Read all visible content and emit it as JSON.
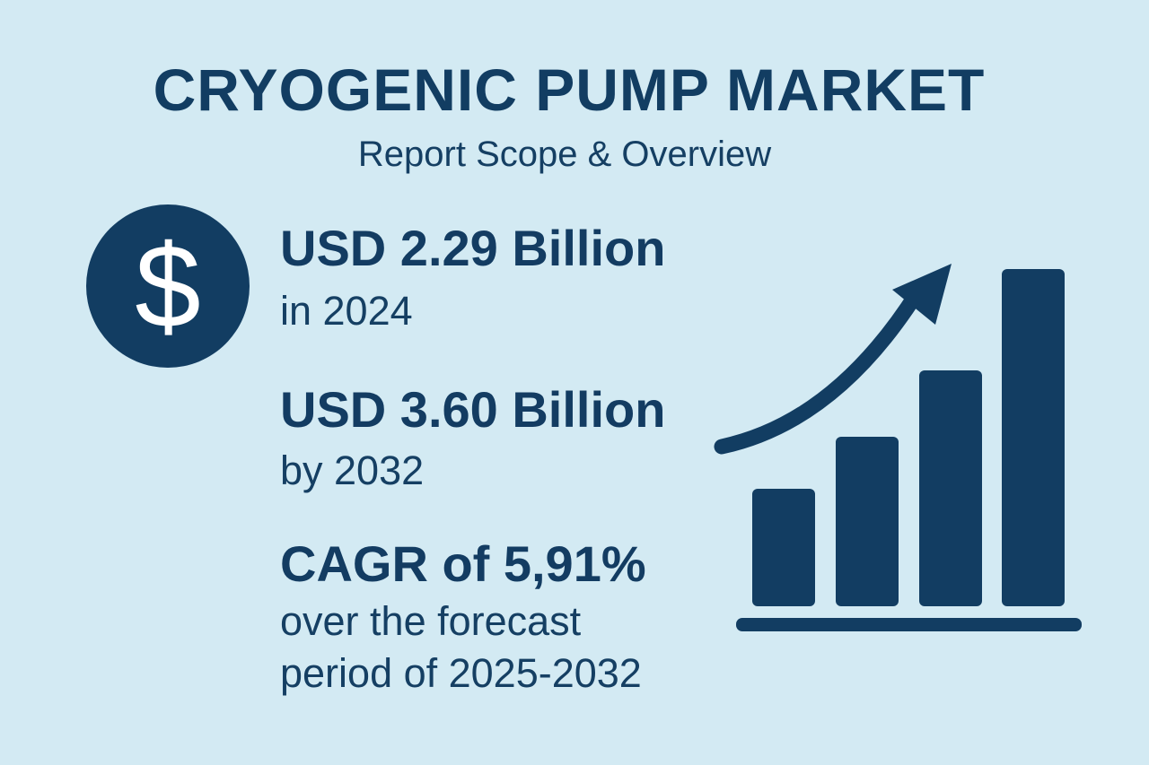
{
  "header": {
    "title": "CRYOGENIC PUMP MARKET",
    "subtitle": "Report Scope & Overview"
  },
  "stats": {
    "value_2024": "USD 2.29 Billion",
    "value_2024_caption": "in 2024",
    "value_2032": "USD 3.60 Billion",
    "value_2032_caption": "by 2032",
    "cagr": "CAGR of 5,91%",
    "cagr_caption_line1": "over the forecast",
    "cagr_caption_line2": "period of 2025-2032"
  },
  "icons": {
    "currency": "dollar-icon",
    "growth": "growth-bar-chart-icon",
    "trend": "up-arrow-icon"
  },
  "colors": {
    "background": "#d3eaf3",
    "primary": "#123d62"
  }
}
